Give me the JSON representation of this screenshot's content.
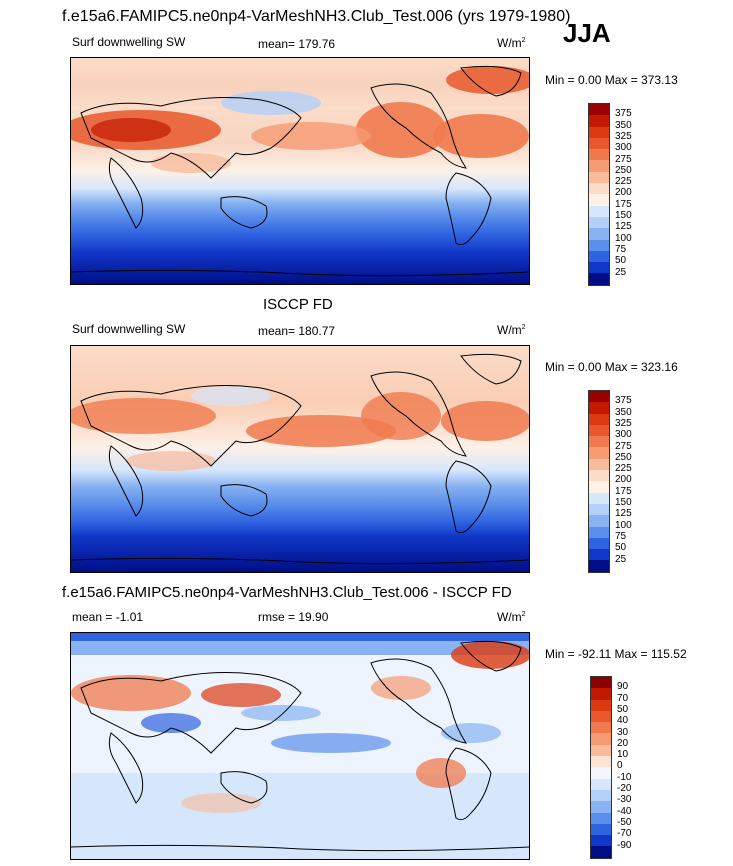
{
  "title": "f.e15a6.FAMIPC5.ne0np4-VarMeshNH3.Club_Test.006 (yrs 1979-1980)",
  "season": "JJA",
  "panels": [
    {
      "heading": "",
      "left_label": "Surf downwelling SW",
      "center_label": "mean= 179.76",
      "units_base": "W/m",
      "units_exp": "2",
      "minmax": "Min =   0.00 Max = 373.13",
      "levels": [
        "375",
        "350",
        "325",
        "300",
        "275",
        "250",
        "225",
        "200",
        "175",
        "150",
        "125",
        "100",
        "75",
        "50",
        "25"
      ],
      "colors": [
        "#990000",
        "#c21a00",
        "#dc3a10",
        "#e8582c",
        "#f07a4e",
        "#f69a74",
        "#f9bb9c",
        "#fbdcc8",
        "#fdf1e8",
        "#d6e6fb",
        "#b2d0f8",
        "#88b2f1",
        "#5a8eea",
        "#2f63e0",
        "#1137c9",
        "#000e86"
      ]
    },
    {
      "heading": "ISCCP FD",
      "left_label": "Surf downwelling SW",
      "center_label": "mean= 180.77",
      "units_base": "W/m",
      "units_exp": "2",
      "minmax": "Min =   0.00 Max = 323.16",
      "levels": [
        "375",
        "350",
        "325",
        "300",
        "275",
        "250",
        "225",
        "200",
        "175",
        "150",
        "125",
        "100",
        "75",
        "50",
        "25"
      ],
      "colors": [
        "#990000",
        "#c21a00",
        "#dc3a10",
        "#e8582c",
        "#f07a4e",
        "#f69a74",
        "#f9bb9c",
        "#fbdcc8",
        "#fdf1e8",
        "#d6e6fb",
        "#b2d0f8",
        "#88b2f1",
        "#5a8eea",
        "#2f63e0",
        "#1137c9",
        "#000e86"
      ]
    },
    {
      "heading": "f.e15a6.FAMIPC5.ne0np4-VarMeshNH3.Club_Test.006 - ISCCP FD",
      "left_label": "mean =  -1.01",
      "center_label": "rmse =  19.90",
      "units_base": "W/m",
      "units_exp": "2",
      "minmax": "Min = -92.11 Max = 115.52",
      "levels": [
        "90",
        "70",
        "50",
        "40",
        "30",
        "20",
        "10",
        "0",
        "-10",
        "-20",
        "-30",
        "-40",
        "-50",
        "-70",
        "-90"
      ],
      "colors": [
        "#8b0000",
        "#c21a00",
        "#dc3a10",
        "#e8582c",
        "#f07a4e",
        "#f69a74",
        "#f9bb9c",
        "#fbe3d5",
        "#f3f7fd",
        "#d6e6fb",
        "#b2d0f8",
        "#88b2f1",
        "#5a8eea",
        "#2f63e0",
        "#1137c9",
        "#000e86"
      ]
    }
  ],
  "chart_data": [
    {
      "type": "heatmap",
      "title": "f.e15a6.FAMIPC5.ne0np4-VarMeshNH3.Club_Test.006 (yrs 1979-1980)",
      "variable": "Surf downwelling SW",
      "season": "JJA",
      "units": "W/m2",
      "mean": 179.76,
      "min": 0.0,
      "max": 373.13,
      "colorbar_levels": [
        25,
        50,
        75,
        100,
        125,
        150,
        175,
        200,
        225,
        250,
        275,
        300,
        325,
        350,
        375
      ]
    },
    {
      "type": "heatmap",
      "title": "ISCCP FD",
      "variable": "Surf downwelling SW",
      "units": "W/m2",
      "mean": 180.77,
      "min": 0.0,
      "max": 323.16,
      "colorbar_levels": [
        25,
        50,
        75,
        100,
        125,
        150,
        175,
        200,
        225,
        250,
        275,
        300,
        325,
        350,
        375
      ]
    },
    {
      "type": "heatmap",
      "title": "f.e15a6.FAMIPC5.ne0np4-VarMeshNH3.Club_Test.006 - ISCCP FD",
      "units": "W/m2",
      "mean": -1.01,
      "rmse": 19.9,
      "min": -92.11,
      "max": 115.52,
      "colorbar_levels": [
        -90,
        -70,
        -50,
        -40,
        -30,
        -20,
        -10,
        0,
        10,
        20,
        30,
        40,
        50,
        70,
        90
      ]
    }
  ]
}
